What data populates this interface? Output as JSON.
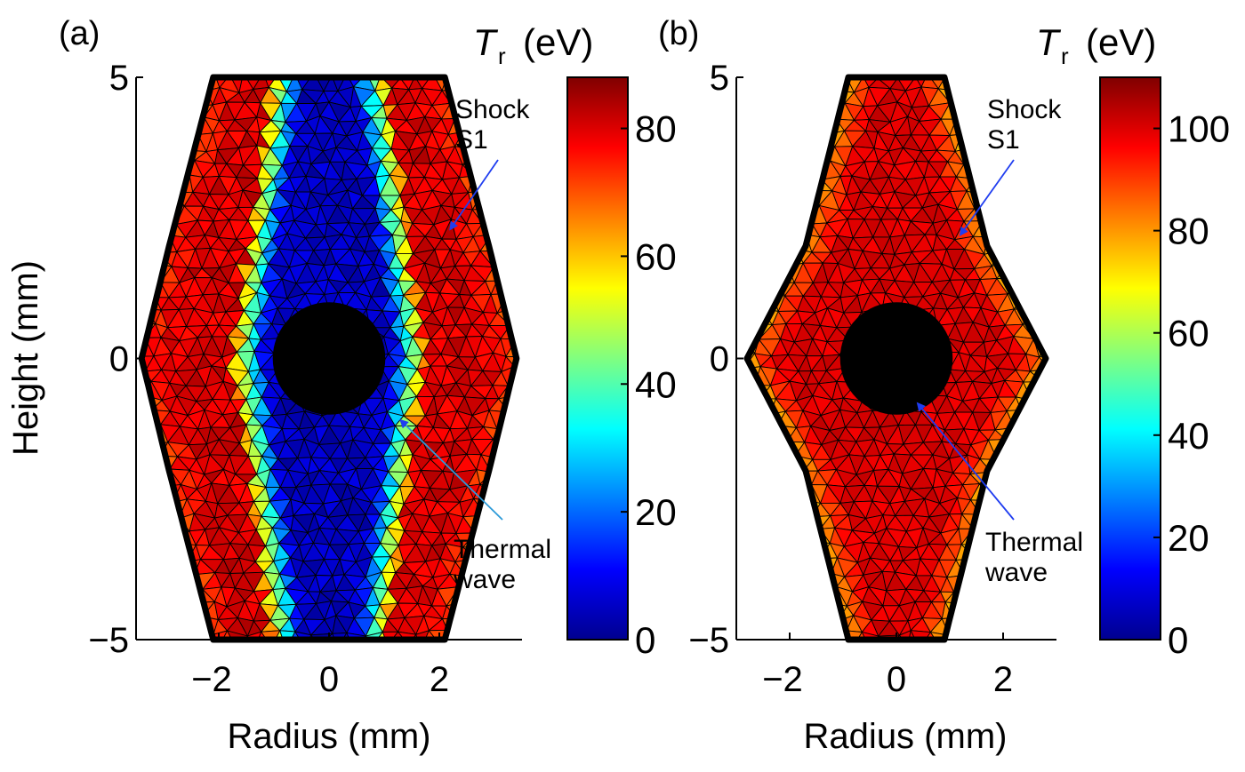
{
  "figure": {
    "colors": {
      "axis": "#000000",
      "mesh": "#000000",
      "arrow": "#1f3df0",
      "thermal_arrow_a": "#2c9ad8",
      "jet": [
        "#00008f",
        "#0000ff",
        "#0080ff",
        "#00ffff",
        "#80ff80",
        "#ffff00",
        "#ff8000",
        "#ff0000",
        "#800000"
      ]
    }
  },
  "chart_data": [
    {
      "type": "heatmap",
      "panel_label": "(a)",
      "xlabel": "Radius (mm)",
      "ylabel": "Height (mm)",
      "xticks": [
        -2,
        0,
        2
      ],
      "xticklabels": [
        "−2",
        "0",
        "2"
      ],
      "yticks": [
        -5,
        0,
        5
      ],
      "yticklabels": [
        "−5",
        "0",
        "5"
      ],
      "xlim": [
        -3.5,
        3.5
      ],
      "ylim": [
        -5,
        5
      ],
      "colorbar": {
        "title_var": "T",
        "title_sub": "r",
        "title_unit": "(eV)",
        "range": [
          0,
          88
        ],
        "ticks": [
          0,
          20,
          40,
          60,
          80
        ],
        "ticklabels": [
          "0",
          "20",
          "40",
          "60",
          "80"
        ]
      },
      "field": {
        "description_values_eV": {
          "core": 5,
          "front": 45,
          "outer": 80
        },
        "boundary_radius_mm": {
          "at_z0": 3.4,
          "at_z_pm2": 2.9,
          "at_z_pm5": 2.1
        },
        "thermal_front_radius_mm": {
          "at_z0": 1.5,
          "at_z_pm5": 0.8
        },
        "hole_radius_mm": 1.0
      },
      "annotations": [
        {
          "text": [
            "Shock",
            "S1"
          ],
          "arrow_to": [
            2.2,
            2.3
          ]
        },
        {
          "text": [
            "Thermal",
            "wave"
          ],
          "arrow_to": [
            1.3,
            -1.1
          ]
        }
      ]
    },
    {
      "type": "heatmap",
      "panel_label": "(b)",
      "xlabel": "Radius (mm)",
      "ylabel": "",
      "xticks": [
        -2,
        0,
        2
      ],
      "xticklabels": [
        "−2",
        "0",
        "2"
      ],
      "yticks": [
        -5,
        0,
        5
      ],
      "yticklabels": [
        "−5",
        "0",
        "5"
      ],
      "xlim": [
        -3,
        3
      ],
      "ylim": [
        -5,
        5
      ],
      "colorbar": {
        "title_var": "T",
        "title_sub": "r",
        "title_unit": "(eV)",
        "range": [
          0,
          110
        ],
        "ticks": [
          0,
          20,
          40,
          60,
          80,
          100
        ],
        "ticklabels": [
          "0",
          "20",
          "40",
          "60",
          "80",
          "100"
        ]
      },
      "field": {
        "description_values_eV": {
          "interior": 100,
          "edge": 80
        },
        "boundary_radius_mm": {
          "at_z0": 2.8,
          "at_z_pm2": 1.7,
          "at_z_pm5": 0.9
        },
        "hole_radius_mm": 1.0
      },
      "annotations": [
        {
          "text": [
            "Shock",
            "S1"
          ],
          "arrow_to": [
            1.2,
            2.2
          ]
        },
        {
          "text": [
            "Thermal",
            "wave"
          ],
          "arrow_to": [
            0.4,
            -0.8
          ]
        }
      ]
    }
  ]
}
